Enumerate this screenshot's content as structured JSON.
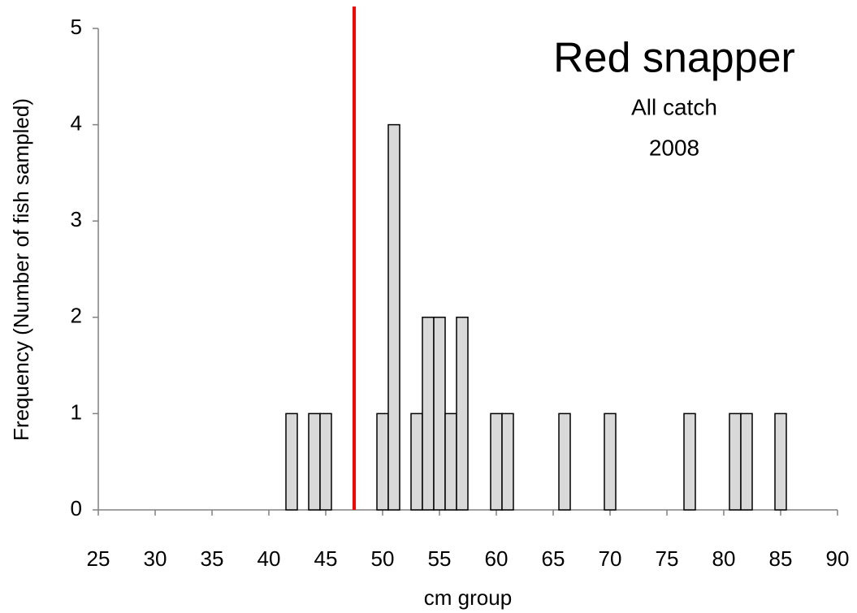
{
  "chart_data": {
    "type": "bar",
    "title": "Red snapper",
    "subtitle": [
      "All catch",
      "2008"
    ],
    "x_label": "cm group",
    "y_label": "Frequency (Number of fish sampled)",
    "x": [
      42,
      44,
      45,
      50,
      51,
      53,
      54,
      55,
      56,
      57,
      60,
      61,
      66,
      70,
      77,
      81,
      82,
      85
    ],
    "values": [
      1,
      1,
      1,
      1,
      4,
      1,
      2,
      2,
      1,
      2,
      1,
      1,
      1,
      1,
      1,
      1,
      1,
      1
    ],
    "color": "#d9d9d9",
    "xlim": [
      25,
      90
    ],
    "xticks": [
      25,
      30,
      35,
      40,
      45,
      50,
      55,
      60,
      65,
      70,
      75,
      80,
      85,
      90
    ],
    "ylim": [
      0,
      5
    ],
    "yticks": [
      0,
      1,
      2,
      3,
      4,
      5
    ],
    "grid": false,
    "reference_line": {
      "value": 47.5,
      "color": "#ff0000"
    }
  }
}
